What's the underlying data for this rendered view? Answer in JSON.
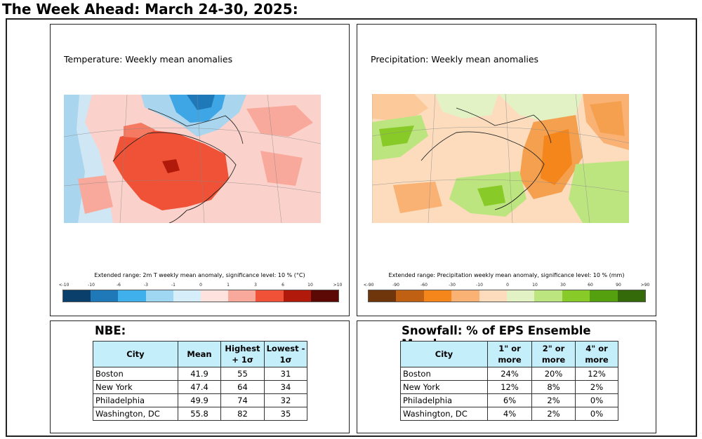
{
  "page": {
    "title": "The Week Ahead: March 24-30, 2025:"
  },
  "temperature_panel": {
    "title": "Temperature: Weekly mean anomalies",
    "caption": "Extended range: 2m T weekly mean anomaly, significance level: 10 % (°C)",
    "tick_labels": [
      "<-10",
      "-10",
      "-6",
      "-3",
      "-1",
      "0",
      "1",
      "3",
      "6",
      "10",
      ">10"
    ],
    "colors": [
      "#0b3f6b",
      "#1f79b8",
      "#3fb0ec",
      "#9fd6f2",
      "#d6eefa",
      "#fde2de",
      "#f9a99b",
      "#ef5236",
      "#b11a0a",
      "#5c0804"
    ]
  },
  "precip_panel": {
    "title": "Precipitation: Weekly mean anomalies",
    "caption": "Extended range: Precipitation weekly mean anomaly, significance level: 10 % (mm)",
    "tick_labels": [
      "<-90",
      "-90",
      "-60",
      "-30",
      "-10",
      "0",
      "10",
      "30",
      "60",
      "90",
      ">90"
    ],
    "colors": [
      "#6e360a",
      "#c06012",
      "#f5861c",
      "#f9b274",
      "#fcdcbd",
      "#e3f2c4",
      "#bde57f",
      "#88ca28",
      "#55a00f",
      "#356a0a"
    ]
  },
  "nbe_table": {
    "title": "NBE:",
    "headers": [
      "City",
      "Mean",
      "Highest + 1σ",
      "Lowest - 1σ"
    ],
    "rows": [
      [
        "Boston",
        "41.9",
        "55",
        "31"
      ],
      [
        "New York",
        "47.4",
        "64",
        "34"
      ],
      [
        "Philadelphia",
        "49.9",
        "74",
        "32"
      ],
      [
        "Washington, DC",
        "55.8",
        "82",
        "35"
      ]
    ]
  },
  "snowfall_table": {
    "title": "Snowfall: % of EPS Ensemble Members:",
    "headers": [
      "City",
      "1\" or more",
      "2\" or more",
      "4\" or more"
    ],
    "rows": [
      [
        "Boston",
        "24%",
        "20%",
        "12%"
      ],
      [
        "New York",
        "12%",
        "8%",
        "2%"
      ],
      [
        "Philadelphia",
        "6%",
        "2%",
        "0%"
      ],
      [
        "Washington, DC",
        "4%",
        "2%",
        "0%"
      ]
    ]
  }
}
